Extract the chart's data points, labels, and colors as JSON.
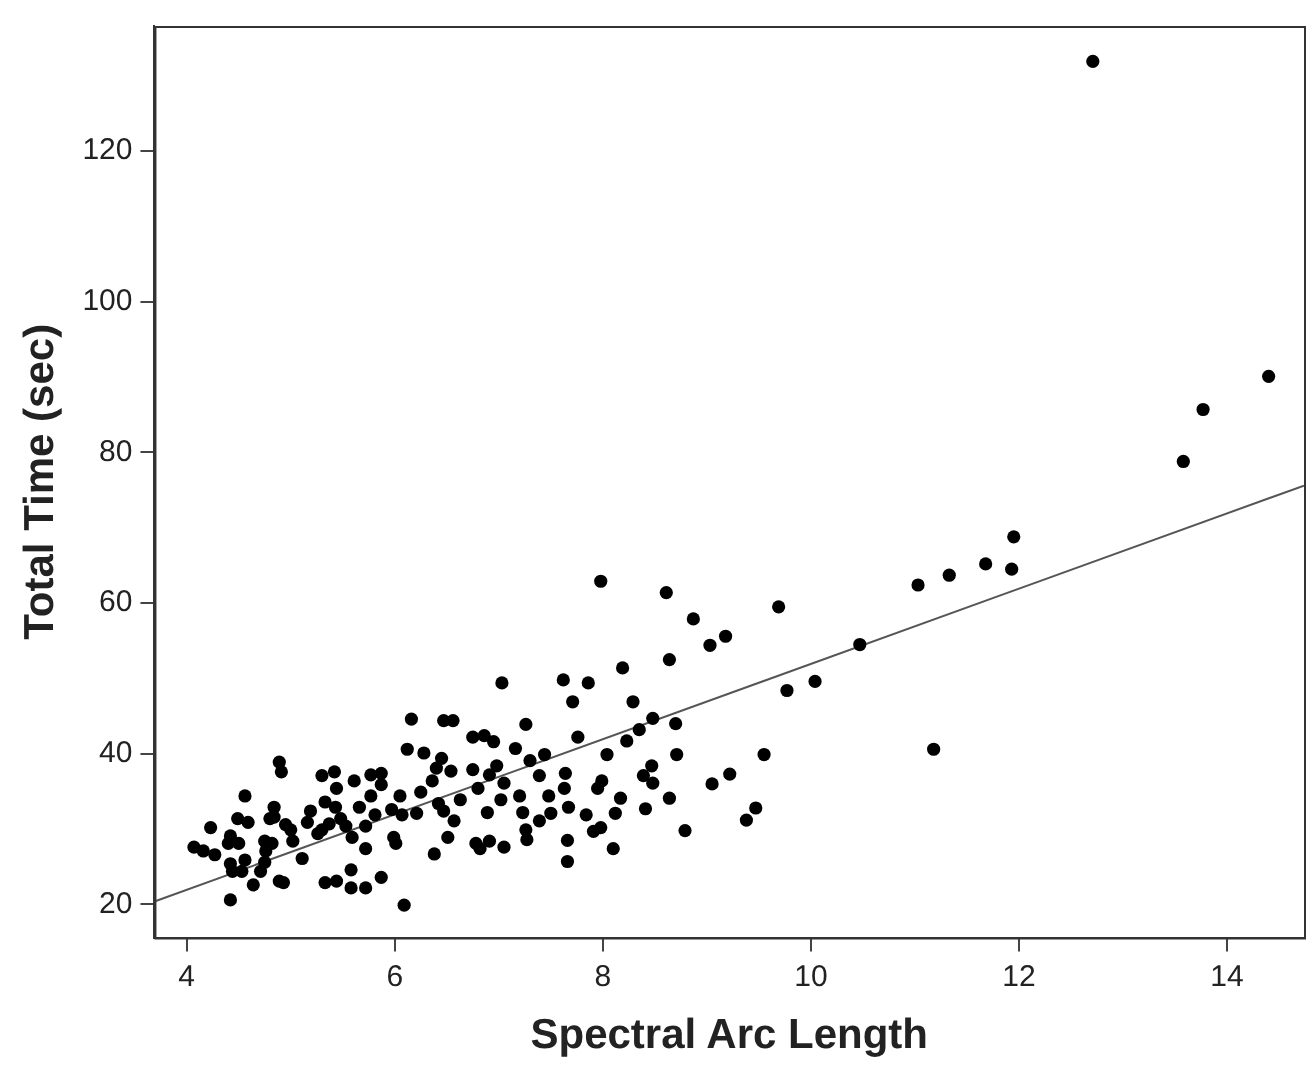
{
  "chart_data": {
    "type": "scatter",
    "xlabel": "Spectral Arc Length",
    "ylabel": "Total Time (sec)",
    "xlim": [
      3.69,
      14.74
    ],
    "ylim": [
      15.6,
      136.6
    ],
    "xticks": [
      4,
      6,
      8,
      10,
      12,
      14
    ],
    "yticks": [
      20,
      40,
      60,
      80,
      100,
      120
    ],
    "grid": false,
    "legend": false,
    "marker": "circle",
    "series": [
      {
        "color": "#000000",
        "x": [
          12.71,
          14.4,
          13.77,
          13.58,
          11.95,
          11.93,
          11.68,
          11.33,
          11.03,
          11.18,
          10.47,
          10.04,
          9.77,
          9.69,
          9.55,
          9.47,
          9.38,
          9.18,
          9.03,
          8.87,
          9.22,
          9.05,
          8.79,
          8.64,
          8.61,
          8.64,
          7.98,
          8.19,
          8.29,
          8.48,
          8.7,
          8.71,
          8.47,
          8.48,
          8.41,
          8.39,
          8.35,
          8.23,
          8.17,
          8.1,
          8.12,
          8.04,
          7.99,
          7.95,
          7.98,
          7.91,
          7.86,
          7.71,
          7.62,
          7.76,
          7.66,
          7.66,
          7.84,
          7.67,
          7.63,
          7.64,
          7.44,
          7.39,
          7.3,
          7.26,
          7.16,
          7.03,
          7.05,
          6.95,
          6.86,
          6.75,
          6.98,
          6.91,
          7.02,
          6.89,
          6.8,
          6.75,
          7.2,
          7.23,
          7.26,
          7.27,
          7.05,
          6.91,
          6.78,
          6.82,
          7.39,
          7.5,
          7.48,
          6.57,
          6.51,
          6.38,
          6.47,
          6.56,
          6.16,
          6.12,
          6.28,
          6.45,
          6.4,
          6.36,
          6.54,
          6.63,
          6.25,
          6.42,
          6.21,
          6.47,
          6.05,
          5.97,
          6.07,
          6.09,
          5.99,
          6.01,
          5.87,
          5.72,
          5.58,
          5.58,
          5.44,
          5.33,
          5.72,
          5.59,
          5.72,
          5.81,
          5.66,
          5.77,
          5.87,
          5.77,
          5.87,
          5.61,
          5.42,
          5.3,
          5.44,
          5.33,
          5.43,
          5.48,
          5.53,
          5.3,
          5.37,
          5.19,
          5.16,
          5.26,
          5.11,
          5.02,
          5.0,
          4.95,
          4.89,
          4.91,
          4.84,
          4.8,
          4.84,
          4.75,
          4.82,
          4.76,
          4.75,
          4.71,
          4.89,
          4.93,
          4.64,
          4.56,
          4.56,
          4.49,
          4.59,
          4.5,
          4.42,
          4.42,
          4.44,
          4.53,
          4.42,
          4.23,
          4.27,
          4.16,
          4.07,
          4.4
        ],
        "values": [
          131.9,
          90.1,
          85.7,
          78.8,
          68.8,
          64.5,
          65.2,
          63.7,
          62.4,
          40.6,
          54.5,
          49.6,
          48.4,
          59.5,
          39.9,
          32.8,
          31.2,
          55.6,
          54.4,
          57.9,
          37.3,
          36.0,
          29.8,
          34.1,
          61.4,
          52.5,
          62.9,
          51.4,
          46.9,
          44.7,
          44.0,
          39.9,
          38.4,
          36.1,
          32.7,
          37.1,
          43.2,
          41.7,
          34.1,
          27.4,
          32.1,
          39.9,
          36.4,
          35.4,
          30.2,
          29.7,
          49.4,
          46.9,
          49.8,
          42.2,
          25.7,
          28.5,
          31.9,
          32.9,
          35.4,
          37.4,
          39.9,
          37.1,
          39.1,
          43.9,
          40.7,
          49.4,
          36.1,
          41.6,
          42.4,
          42.2,
          38.4,
          37.2,
          33.9,
          32.2,
          35.4,
          37.9,
          34.4,
          32.2,
          29.9,
          28.6,
          27.6,
          28.4,
          28.1,
          27.4,
          31.1,
          32.1,
          34.4,
          31.1,
          28.9,
          26.7,
          44.4,
          44.4,
          44.6,
          40.6,
          40.1,
          39.4,
          38.1,
          36.4,
          37.7,
          33.9,
          34.9,
          33.4,
          32.1,
          32.4,
          34.4,
          32.6,
          31.9,
          19.9,
          28.9,
          28.1,
          23.6,
          22.2,
          22.2,
          24.6,
          23.1,
          22.9,
          27.4,
          28.9,
          30.4,
          31.9,
          32.9,
          34.4,
          35.9,
          37.2,
          37.4,
          36.4,
          37.6,
          37.1,
          35.4,
          33.6,
          32.9,
          31.4,
          30.4,
          29.9,
          30.7,
          32.4,
          30.9,
          29.4,
          26.1,
          28.4,
          29.9,
          30.6,
          38.9,
          37.6,
          32.9,
          31.4,
          31.6,
          28.4,
          28.1,
          27.1,
          25.6,
          24.4,
          23.1,
          22.9,
          22.6,
          25.9,
          34.4,
          31.4,
          30.9,
          28.1,
          29.1,
          25.4,
          24.4,
          24.4,
          20.6,
          30.2,
          26.6,
          27.1,
          27.6,
          28.1
        ]
      },
      {
        "type": "line",
        "marker": "none",
        "color": "#555555",
        "x": [
          3.69,
          14.74
        ],
        "values": [
          20.4,
          75.6
        ]
      }
    ]
  }
}
